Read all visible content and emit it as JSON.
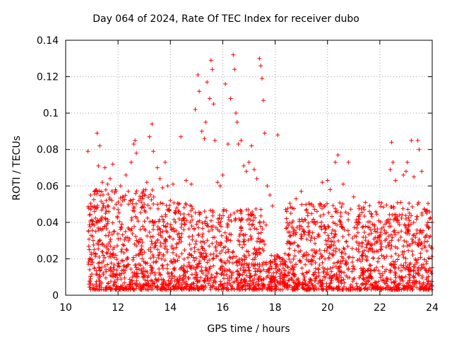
{
  "chart_data": {
    "type": "scatter",
    "title": "Day 064 of 2024, Rate Of TEC Index for receiver dubo",
    "xlabel": "GPS time / hours",
    "ylabel": "ROTI / TECUs",
    "xlim": [
      10,
      24
    ],
    "ylim": [
      0,
      0.14
    ],
    "x_ticks": [
      "10",
      "12",
      "14",
      "16",
      "18",
      "20",
      "22",
      "24"
    ],
    "y_ticks": [
      "0",
      "0.02",
      "0.04",
      "0.06",
      "0.08",
      "0.1",
      "0.12",
      "0.14"
    ],
    "grid": true,
    "marker": "+",
    "marker_color": "#ff0000",
    "series": [
      {
        "points": [
          [
            10.85,
            0.079
          ],
          [
            10.9,
            0.025
          ],
          [
            10.95,
            0.055
          ],
          [
            11.0,
            0.041
          ],
          [
            11.05,
            0.03
          ],
          [
            11.1,
            0.046
          ],
          [
            11.15,
            0.035
          ],
          [
            11.2,
            0.089
          ],
          [
            11.25,
            0.071
          ],
          [
            11.3,
            0.082
          ],
          [
            11.35,
            0.042
          ],
          [
            11.4,
            0.062
          ],
          [
            11.45,
            0.049
          ],
          [
            11.5,
            0.07
          ],
          [
            11.55,
            0.052
          ],
          [
            11.6,
            0.061
          ],
          [
            11.7,
            0.064
          ],
          [
            11.8,
            0.072
          ],
          [
            11.9,
            0.058
          ],
          [
            12.0,
            0.047
          ],
          [
            12.1,
            0.06
          ],
          [
            12.2,
            0.054
          ],
          [
            12.3,
            0.066
          ],
          [
            12.4,
            0.05
          ],
          [
            12.5,
            0.073
          ],
          [
            12.6,
            0.083
          ],
          [
            12.65,
            0.085
          ],
          [
            12.7,
            0.078
          ],
          [
            12.8,
            0.052
          ],
          [
            12.9,
            0.048
          ],
          [
            13.0,
            0.055
          ],
          [
            13.1,
            0.062
          ],
          [
            13.2,
            0.087
          ],
          [
            13.3,
            0.094
          ],
          [
            13.35,
            0.079
          ],
          [
            13.5,
            0.07
          ],
          [
            13.6,
            0.064
          ],
          [
            13.7,
            0.059
          ],
          [
            13.8,
            0.073
          ],
          [
            13.9,
            0.06
          ],
          [
            14.0,
            0.052
          ],
          [
            14.1,
            0.061
          ],
          [
            14.2,
            0.045
          ],
          [
            14.3,
            0.05
          ],
          [
            14.4,
            0.087
          ],
          [
            14.6,
            0.063
          ],
          [
            14.8,
            0.061
          ],
          [
            14.95,
            0.102
          ],
          [
            15.05,
            0.121
          ],
          [
            15.1,
            0.112
          ],
          [
            15.2,
            0.09
          ],
          [
            15.3,
            0.086
          ],
          [
            15.35,
            0.095
          ],
          [
            15.4,
            0.117
          ],
          [
            15.5,
            0.108
          ],
          [
            15.55,
            0.129
          ],
          [
            15.6,
            0.124
          ],
          [
            15.65,
            0.105
          ],
          [
            15.7,
            0.085
          ],
          [
            15.8,
            0.062
          ],
          [
            15.9,
            0.06
          ],
          [
            16.0,
            0.066
          ],
          [
            16.1,
            0.116
          ],
          [
            16.2,
            0.083
          ],
          [
            16.3,
            0.108
          ],
          [
            16.4,
            0.132
          ],
          [
            16.45,
            0.124
          ],
          [
            16.5,
            0.1
          ],
          [
            16.55,
            0.095
          ],
          [
            16.6,
            0.083
          ],
          [
            16.7,
            0.085
          ],
          [
            16.8,
            0.071
          ],
          [
            16.9,
            0.068
          ],
          [
            17.0,
            0.073
          ],
          [
            17.1,
            0.082
          ],
          [
            17.2,
            0.069
          ],
          [
            17.3,
            0.064
          ],
          [
            17.4,
            0.13
          ],
          [
            17.45,
            0.126
          ],
          [
            17.5,
            0.119
          ],
          [
            17.55,
            0.107
          ],
          [
            17.6,
            0.089
          ],
          [
            17.7,
            0.06
          ],
          [
            17.8,
            0.055
          ],
          [
            17.9,
            0.049
          ],
          [
            18.1,
            0.088
          ],
          [
            18.4,
            0.047
          ],
          [
            18.6,
            0.045
          ],
          [
            18.8,
            0.053
          ],
          [
            19.0,
            0.057
          ],
          [
            19.2,
            0.047
          ],
          [
            19.4,
            0.05
          ],
          [
            19.6,
            0.046
          ],
          [
            19.8,
            0.062
          ],
          [
            20.0,
            0.063
          ],
          [
            20.1,
            0.058
          ],
          [
            20.3,
            0.073
          ],
          [
            20.4,
            0.077
          ],
          [
            20.6,
            0.061
          ],
          [
            20.8,
            0.073
          ],
          [
            21.0,
            0.054
          ],
          [
            21.2,
            0.049
          ],
          [
            21.4,
            0.047
          ],
          [
            21.6,
            0.046
          ],
          [
            21.8,
            0.038
          ],
          [
            22.0,
            0.032
          ],
          [
            22.2,
            0.03
          ],
          [
            22.4,
            0.069
          ],
          [
            22.45,
            0.084
          ],
          [
            22.5,
            0.073
          ],
          [
            22.6,
            0.063
          ],
          [
            22.8,
            0.051
          ],
          [
            22.9,
            0.066
          ],
          [
            23.0,
            0.068
          ],
          [
            23.05,
            0.073
          ],
          [
            23.2,
            0.085
          ],
          [
            23.3,
            0.065
          ],
          [
            23.45,
            0.085
          ],
          [
            23.5,
            0.08
          ],
          [
            23.6,
            0.068
          ],
          [
            23.7,
            0.047
          ],
          [
            23.8,
            0.045
          ],
          [
            23.9,
            0.042
          ],
          [
            24.0,
            0.04
          ]
        ]
      }
    ]
  }
}
